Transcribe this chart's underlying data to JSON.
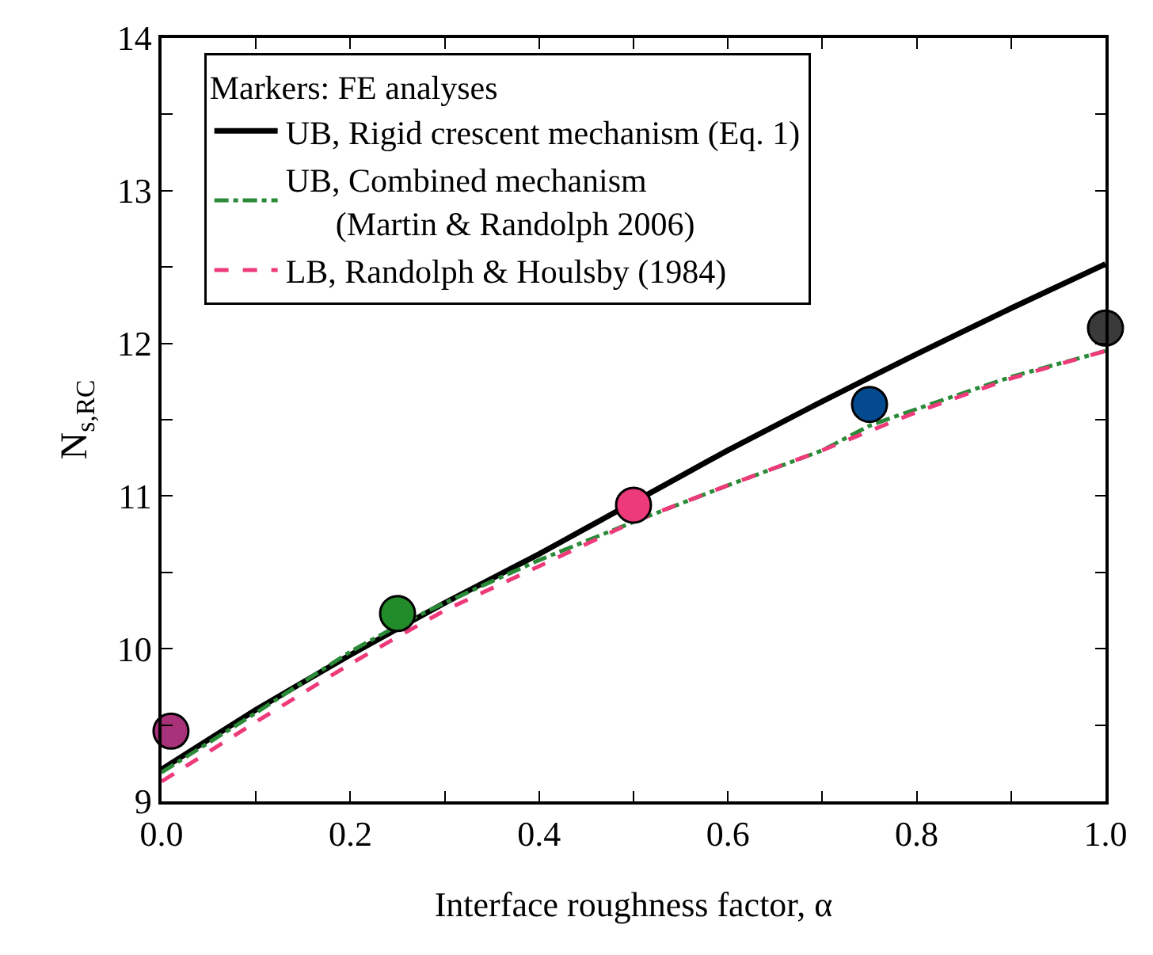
{
  "chart_data": {
    "type": "line",
    "xlabel": "Interface roughness factor, α",
    "ylabel": "N$_{s,RC}$",
    "legend_title": "Markers: FE analyses",
    "legend": "top left",
    "grid": false,
    "xlim": [
      0,
      1
    ],
    "ylim": [
      9,
      14
    ],
    "xticks": [
      {
        "value": 0,
        "label": "0.0"
      },
      {
        "value": 0.1,
        "label": null
      },
      {
        "value": 0.2,
        "label": "0.2"
      },
      {
        "value": 0.3,
        "label": null
      },
      {
        "value": 0.4,
        "label": "0.4"
      },
      {
        "value": 0.5,
        "label": null
      },
      {
        "value": 0.6,
        "label": "0.6"
      },
      {
        "value": 0.7,
        "label": null
      },
      {
        "value": 0.8,
        "label": "0.8"
      },
      {
        "value": 0.9,
        "label": null
      },
      {
        "value": 1,
        "label": "1.0"
      }
    ],
    "yticks": [
      9,
      {
        "value": 9.5,
        "label": null
      },
      10,
      {
        "value": 10.5,
        "label": null
      },
      11,
      {
        "value": 11.5,
        "label": null
      },
      12,
      {
        "value": 12.5,
        "label": null
      },
      13,
      {
        "value": 13.5,
        "label": null
      },
      14
    ],
    "series": [
      {
        "name": "UB, Rigid crescent mechanism (Eq. 1)",
        "line_style": "solid",
        "color": "#000000",
        "x": [
          0,
          0.1,
          0.2,
          0.3,
          0.4,
          0.45,
          0.55,
          0.6,
          0.7,
          0.8,
          0.9,
          1
        ],
        "values": [
          9.21,
          9.6,
          9.96,
          10.3,
          10.62,
          10.79,
          11.13,
          11.3,
          11.62,
          11.93,
          12.23,
          12.52
        ]
      },
      {
        "name": "UB, Combined mechanism\n(Martin & Randolph 2006)",
        "line_style": "dashdot",
        "color": "#2a8a38",
        "x": [
          0,
          0.1,
          0.2,
          0.25,
          0.3,
          0.4,
          0.5,
          0.6,
          0.7,
          0.75,
          0.8,
          0.9,
          1
        ],
        "values": [
          9.19,
          9.58,
          9.98,
          10.15,
          10.3,
          10.58,
          10.83,
          11.07,
          11.3,
          11.46,
          11.57,
          11.78,
          11.95
        ]
      },
      {
        "name": "LB, Randolph & Houlsby (1984)",
        "line_style": "dashed",
        "color": "#ee3a7a",
        "x": [
          0,
          0.1,
          0.2,
          0.3,
          0.4,
          0.5,
          0.6,
          0.7,
          0.8,
          0.9,
          1
        ],
        "values": [
          9.13,
          9.52,
          9.9,
          10.25,
          10.54,
          10.83,
          11.07,
          11.3,
          11.55,
          11.77,
          11.95
        ]
      },
      {
        "type": "scatter",
        "marker": "circle",
        "x": [
          0.01,
          0.25,
          0.5,
          0.75,
          1
        ],
        "values": [
          9.46,
          10.23,
          10.94,
          11.6,
          12.1
        ],
        "colors": [
          "#a83279",
          "#228b2a",
          "#ec3a7a",
          "#044a8e",
          "#3a3a3a"
        ]
      }
    ]
  }
}
